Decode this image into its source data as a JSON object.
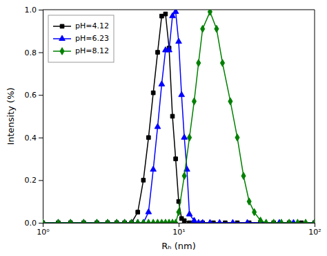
{
  "chart_data": {
    "type": "line",
    "xlabel": "Rₕ (nm)",
    "ylabel": "Intensity (%)",
    "log": "x",
    "xlim": [
      1,
      100
    ],
    "ylim": [
      0.0,
      1.0
    ],
    "xticks": [
      {
        "value": 1,
        "label": "10⁰"
      },
      {
        "value": 10,
        "label": "10¹"
      },
      {
        "value": 100,
        "label": "10²"
      }
    ],
    "yticks": [
      {
        "value": 0,
        "label": "0.0"
      },
      0.2,
      0.4,
      0.6,
      0.8,
      {
        "value": 1,
        "label": "1.0"
      }
    ],
    "legend": "upper left",
    "grid": false,
    "series": [
      {
        "name": "pH=4.12",
        "color": "black",
        "marker": "square",
        "x": [
          1.0,
          1.3,
          1.6,
          2.0,
          2.5,
          3.0,
          3.5,
          4.0,
          4.5,
          5.0,
          5.5,
          6.0,
          6.5,
          7.0,
          7.5,
          8.0,
          8.5,
          9.0,
          9.5,
          10.0,
          10.5,
          11.0,
          12.0,
          13.0,
          15.0,
          18.0,
          22.0,
          27.0,
          33.0,
          40.0,
          50.0,
          65.0,
          80.0,
          100.0
        ],
        "values": [
          0.0,
          0.0,
          0.0,
          0.0,
          0.0,
          0.0,
          0.0,
          0.0,
          0.0,
          0.05,
          0.2,
          0.4,
          0.61,
          0.8,
          0.97,
          0.98,
          0.82,
          0.5,
          0.3,
          0.1,
          0.02,
          0.01,
          0.0,
          0.0,
          0.0,
          0.0,
          0.0,
          0.0,
          0.0,
          0.0,
          0.0,
          0.0,
          0.0,
          0.0
        ]
      },
      {
        "name": "pH=6.23",
        "color": "blue",
        "marker": "triangle",
        "x": [
          1.0,
          1.3,
          1.6,
          2.0,
          2.5,
          3.0,
          3.5,
          4.0,
          4.5,
          5.0,
          5.5,
          6.0,
          6.5,
          7.0,
          7.5,
          8.0,
          8.5,
          9.0,
          9.5,
          10.0,
          10.5,
          11.0,
          11.5,
          12.0,
          13.0,
          14.0,
          15.0,
          17.0,
          20.0,
          25.0,
          32.0,
          40.0,
          55.0,
          70.0,
          100.0
        ],
        "values": [
          0.0,
          0.0,
          0.0,
          0.0,
          0.0,
          0.0,
          0.0,
          0.0,
          0.0,
          0.0,
          0.0,
          0.05,
          0.25,
          0.45,
          0.65,
          0.81,
          0.81,
          0.97,
          0.99,
          0.85,
          0.6,
          0.4,
          0.25,
          0.04,
          0.01,
          0.0,
          0.0,
          0.0,
          0.0,
          0.0,
          0.0,
          0.0,
          0.0,
          0.0,
          0.0
        ]
      },
      {
        "name": "pH=8.12",
        "color": "green",
        "marker": "diamond",
        "x": [
          1.0,
          1.3,
          1.6,
          2.0,
          2.5,
          3.0,
          3.5,
          4.0,
          4.5,
          5.0,
          5.5,
          6.0,
          6.5,
          7.0,
          7.5,
          8.0,
          8.5,
          9.0,
          9.5,
          10.0,
          11.0,
          12.0,
          13.0,
          14.0,
          15.0,
          17.0,
          19.0,
          21.0,
          24.0,
          27.0,
          30.0,
          33.0,
          36.0,
          40.0,
          44.0,
          50.0,
          57.0,
          65.0,
          75.0,
          86.0,
          100.0
        ],
        "values": [
          0.0,
          0.0,
          0.0,
          0.0,
          0.0,
          0.0,
          0.0,
          0.0,
          0.0,
          0.0,
          0.0,
          0.0,
          0.0,
          0.0,
          0.0,
          0.0,
          0.0,
          0.0,
          0.0,
          0.05,
          0.22,
          0.4,
          0.57,
          0.75,
          0.91,
          0.99,
          0.91,
          0.75,
          0.57,
          0.4,
          0.22,
          0.1,
          0.05,
          0.01,
          0.0,
          0.0,
          0.0,
          0.0,
          0.0,
          0.0,
          0.0
        ]
      }
    ]
  }
}
